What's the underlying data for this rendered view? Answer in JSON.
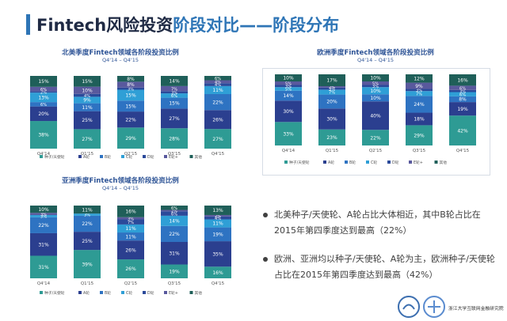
{
  "slide": {
    "title_main": "Fintech风险投资",
    "title_accent": "阶段对比——阶段分布",
    "title_color": "#1f2a44",
    "accent_color": "#2e75b6"
  },
  "colors": {
    "种子/天使轮": "#2e9b94",
    "A轮": "#2b3f8f",
    "B轮": "#2e73c2",
    "C轮": "#2f9fd6",
    "D轮": "#2b4a9a",
    "E轮+": "#59599d",
    "其他": "#1f5f59"
  },
  "legend_labels": [
    "种子/天使轮",
    "A轮",
    "B轮",
    "C轮",
    "D轮",
    "E轮+",
    "其他"
  ],
  "bullets": [
    "北美种子/天使轮、A轮占比大体相近，其中B轮占比在2015年第四季度达到最高（22%）",
    "欧洲、亚洲均以种子/天使轮、A轮为主，欧洲种子/天使轮占比在2015年第四季度达到最高（42%）"
  ],
  "logo": {
    "text": "浙江大学互联网金融研究院"
  },
  "chart_data": [
    {
      "type": "bar",
      "stacked": true,
      "title": "北美季度Fintech领域各阶段投资比例",
      "subtitle": "Q4'14 – Q4'15",
      "categories": [
        "Q4'14",
        "Q1'15",
        "Q2'15",
        "Q3'15",
        "Q4'15"
      ],
      "series": [
        {
          "name": "种子/天使轮",
          "values": [
            38,
            27,
            29,
            28,
            27
          ]
        },
        {
          "name": "A轮",
          "values": [
            20,
            25,
            22,
            27,
            26
          ]
        },
        {
          "name": "B轮",
          "values": [
            6,
            11,
            15,
            15,
            22
          ]
        },
        {
          "name": "C轮",
          "values": [
            13,
            9,
            15,
            6,
            11
          ]
        },
        {
          "name": "D轮",
          "values": [
            2,
            4,
            3,
            3,
            4
          ]
        },
        {
          "name": "E轮+",
          "values": [
            6,
            10,
            8,
            7,
            4
          ]
        },
        {
          "name": "其他",
          "values": [
            15,
            15,
            8,
            14,
            6
          ]
        }
      ]
    },
    {
      "type": "bar",
      "stacked": true,
      "title": "欧洲季度Fintech领域各阶段投资比例",
      "subtitle": "Q4'14 – Q4'15",
      "categories": [
        "Q4'14",
        "Q1'15",
        "Q2'15",
        "Q3'15",
        "Q4'15"
      ],
      "series": [
        {
          "name": "种子/天使轮",
          "values": [
            33,
            23,
            22,
            29,
            42
          ]
        },
        {
          "name": "A轮",
          "values": [
            30,
            30,
            40,
            18,
            19
          ]
        },
        {
          "name": "B轮",
          "values": [
            14,
            20,
            10,
            24,
            8
          ]
        },
        {
          "name": "C轮",
          "values": [
            5,
            7,
            10,
            7,
            6
          ]
        },
        {
          "name": "D轮",
          "values": [
            3,
            3,
            3,
            3,
            3
          ]
        },
        {
          "name": "E轮+",
          "values": [
            5,
            2,
            5,
            9,
            6
          ]
        },
        {
          "name": "其他",
          "values": [
            10,
            17,
            10,
            12,
            16
          ]
        }
      ]
    },
    {
      "type": "bar",
      "stacked": true,
      "title": "亚洲季度Fintech领域各阶段投资比例",
      "subtitle": "Q4'14 – Q4'15",
      "categories": [
        "Q4'14",
        "Q1'15",
        "Q2'15",
        "Q3'15",
        "Q4'15"
      ],
      "series": [
        {
          "name": "种子/天使轮",
          "values": [
            31,
            39,
            26,
            19,
            16
          ]
        },
        {
          "name": "A轮",
          "values": [
            31,
            25,
            26,
            31,
            35
          ]
        },
        {
          "name": "B轮",
          "values": [
            22,
            22,
            11,
            22,
            19
          ]
        },
        {
          "name": "C轮",
          "values": [
            3,
            3,
            11,
            14,
            11
          ]
        },
        {
          "name": "D轮",
          "values": [
            0,
            0,
            7,
            6,
            4
          ]
        },
        {
          "name": "E轮+",
          "values": [
            3,
            0,
            3,
            2,
            2
          ]
        },
        {
          "name": "其他",
          "values": [
            10,
            11,
            16,
            6,
            13
          ]
        }
      ]
    }
  ]
}
